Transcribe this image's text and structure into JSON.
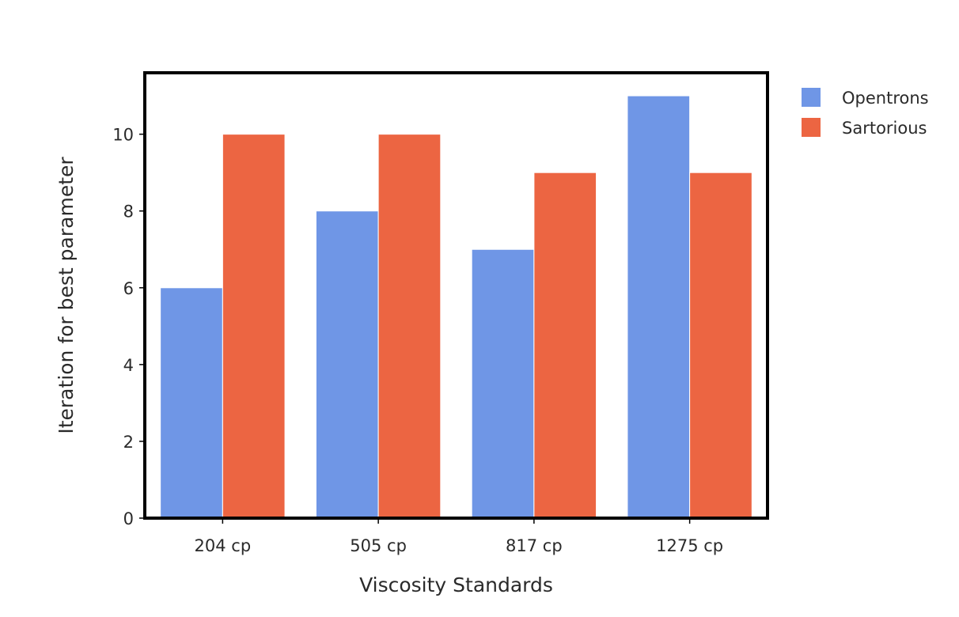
{
  "chart_data": {
    "type": "bar",
    "categories": [
      "204 cp",
      "505 cp",
      "817 cp",
      "1275 cp"
    ],
    "series": [
      {
        "name": "Opentrons",
        "color": "#6f96e6",
        "values": [
          6,
          8,
          7,
          11
        ]
      },
      {
        "name": "Sartorious",
        "color": "#ec6542",
        "values": [
          10,
          10,
          9,
          9
        ]
      }
    ],
    "title": "",
    "xlabel": "Viscosity Standards",
    "ylabel": "Iteration for best parameter",
    "ylim": [
      0,
      11.6
    ],
    "yticks": [
      0,
      2,
      4,
      6,
      8,
      10
    ],
    "grid": false,
    "legend_position": "top-right, outside plot"
  }
}
